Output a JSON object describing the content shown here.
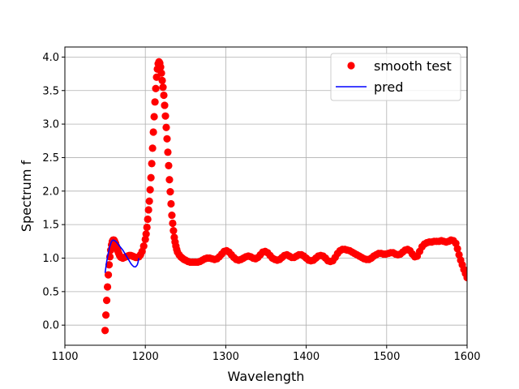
{
  "chart_data": {
    "type": "scatter",
    "title": "",
    "xlabel": "Wavelength",
    "ylabel": "Spectrum f",
    "xlim": [
      1100,
      1600
    ],
    "ylim": [
      -0.3,
      4.15
    ],
    "xticks": [
      1100,
      1200,
      1300,
      1400,
      1500,
      1600
    ],
    "yticks": [
      0.0,
      0.5,
      1.0,
      1.5,
      2.0,
      2.5,
      3.0,
      3.5,
      4.0
    ],
    "xtick_labels": [
      "1100",
      "1200",
      "1300",
      "1400",
      "1500",
      "1600"
    ],
    "ytick_labels": [
      "0.0",
      "0.5",
      "1.0",
      "1.5",
      "2.0",
      "2.5",
      "3.0",
      "3.5",
      "4.0"
    ],
    "grid": true,
    "legend_position": "top-right",
    "series": [
      {
        "name": "smooth test",
        "style": "markers",
        "color": "#ff0000",
        "points": [
          [
            1150,
            -0.08
          ],
          [
            1151,
            0.15
          ],
          [
            1152,
            0.37
          ],
          [
            1153,
            0.57
          ],
          [
            1154,
            0.75
          ],
          [
            1155,
            0.9
          ],
          [
            1156,
            1.02
          ],
          [
            1157,
            1.12
          ],
          [
            1158,
            1.2
          ],
          [
            1159,
            1.25
          ],
          [
            1160,
            1.27
          ],
          [
            1161,
            1.27
          ],
          [
            1162,
            1.25
          ],
          [
            1163,
            1.22
          ],
          [
            1164,
            1.18
          ],
          [
            1165,
            1.14
          ],
          [
            1166,
            1.1
          ],
          [
            1167,
            1.07
          ],
          [
            1168,
            1.04
          ],
          [
            1169,
            1.02
          ],
          [
            1170,
            1.01
          ],
          [
            1172,
            1.0
          ],
          [
            1174,
            1.01
          ],
          [
            1176,
            1.02
          ],
          [
            1178,
            1.03
          ],
          [
            1180,
            1.04
          ],
          [
            1182,
            1.04
          ],
          [
            1184,
            1.03
          ],
          [
            1186,
            1.02
          ],
          [
            1188,
            1.01
          ],
          [
            1190,
            1.01
          ],
          [
            1192,
            1.02
          ],
          [
            1194,
            1.05
          ],
          [
            1196,
            1.1
          ],
          [
            1198,
            1.18
          ],
          [
            1200,
            1.28
          ],
          [
            1201,
            1.36
          ],
          [
            1202,
            1.46
          ],
          [
            1203,
            1.58
          ],
          [
            1204,
            1.72
          ],
          [
            1205,
            1.85
          ],
          [
            1206,
            2.02
          ],
          [
            1207,
            2.2
          ],
          [
            1208,
            2.41
          ],
          [
            1209,
            2.64
          ],
          [
            1210,
            2.88
          ],
          [
            1211,
            3.11
          ],
          [
            1212,
            3.33
          ],
          [
            1213,
            3.53
          ],
          [
            1214,
            3.7
          ],
          [
            1215,
            3.82
          ],
          [
            1216,
            3.9
          ],
          [
            1217,
            3.93
          ],
          [
            1218,
            3.91
          ],
          [
            1219,
            3.85
          ],
          [
            1220,
            3.76
          ],
          [
            1221,
            3.65
          ],
          [
            1222,
            3.55
          ],
          [
            1223,
            3.43
          ],
          [
            1224,
            3.28
          ],
          [
            1225,
            3.12
          ],
          [
            1226,
            2.95
          ],
          [
            1227,
            2.78
          ],
          [
            1228,
            2.58
          ],
          [
            1229,
            2.38
          ],
          [
            1230,
            2.17
          ],
          [
            1231,
            1.99
          ],
          [
            1232,
            1.81
          ],
          [
            1233,
            1.64
          ],
          [
            1234,
            1.52
          ],
          [
            1235,
            1.41
          ],
          [
            1236,
            1.31
          ],
          [
            1237,
            1.24
          ],
          [
            1238,
            1.18
          ],
          [
            1239,
            1.13
          ],
          [
            1240,
            1.09
          ],
          [
            1242,
            1.05
          ],
          [
            1244,
            1.02
          ],
          [
            1246,
            1.0
          ],
          [
            1248,
            0.98
          ],
          [
            1250,
            0.97
          ],
          [
            1253,
            0.95
          ],
          [
            1256,
            0.94
          ],
          [
            1259,
            0.94
          ],
          [
            1262,
            0.94
          ],
          [
            1265,
            0.94
          ],
          [
            1268,
            0.95
          ],
          [
            1271,
            0.97
          ],
          [
            1274,
            0.99
          ],
          [
            1277,
            1.0
          ],
          [
            1280,
            1.0
          ],
          [
            1283,
            0.99
          ],
          [
            1286,
            0.98
          ],
          [
            1289,
            0.99
          ],
          [
            1292,
            1.02
          ],
          [
            1295,
            1.06
          ],
          [
            1298,
            1.1
          ],
          [
            1301,
            1.11
          ],
          [
            1304,
            1.09
          ],
          [
            1307,
            1.05
          ],
          [
            1310,
            1.01
          ],
          [
            1313,
            0.98
          ],
          [
            1316,
            0.97
          ],
          [
            1319,
            0.98
          ],
          [
            1322,
            1.0
          ],
          [
            1325,
            1.02
          ],
          [
            1328,
            1.03
          ],
          [
            1331,
            1.02
          ],
          [
            1334,
            1.0
          ],
          [
            1337,
            0.99
          ],
          [
            1340,
            1.01
          ],
          [
            1343,
            1.05
          ],
          [
            1346,
            1.09
          ],
          [
            1349,
            1.1
          ],
          [
            1352,
            1.08
          ],
          [
            1355,
            1.04
          ],
          [
            1358,
            1.0
          ],
          [
            1361,
            0.98
          ],
          [
            1364,
            0.97
          ],
          [
            1367,
            0.98
          ],
          [
            1370,
            1.01
          ],
          [
            1373,
            1.04
          ],
          [
            1376,
            1.05
          ],
          [
            1379,
            1.03
          ],
          [
            1382,
            1.01
          ],
          [
            1385,
            1.01
          ],
          [
            1388,
            1.03
          ],
          [
            1391,
            1.05
          ],
          [
            1394,
            1.05
          ],
          [
            1397,
            1.03
          ],
          [
            1400,
            1.0
          ],
          [
            1403,
            0.97
          ],
          [
            1406,
            0.96
          ],
          [
            1409,
            0.97
          ],
          [
            1412,
            1.0
          ],
          [
            1415,
            1.03
          ],
          [
            1418,
            1.04
          ],
          [
            1421,
            1.03
          ],
          [
            1424,
            1.0
          ],
          [
            1427,
            0.96
          ],
          [
            1430,
            0.95
          ],
          [
            1433,
            0.96
          ],
          [
            1436,
            1.01
          ],
          [
            1439,
            1.07
          ],
          [
            1442,
            1.11
          ],
          [
            1445,
            1.13
          ],
          [
            1448,
            1.13
          ],
          [
            1451,
            1.12
          ],
          [
            1454,
            1.11
          ],
          [
            1457,
            1.09
          ],
          [
            1460,
            1.07
          ],
          [
            1463,
            1.05
          ],
          [
            1466,
            1.03
          ],
          [
            1469,
            1.01
          ],
          [
            1472,
            0.99
          ],
          [
            1475,
            0.98
          ],
          [
            1478,
            0.98
          ],
          [
            1481,
            1.0
          ],
          [
            1484,
            1.03
          ],
          [
            1487,
            1.05
          ],
          [
            1490,
            1.07
          ],
          [
            1493,
            1.07
          ],
          [
            1496,
            1.06
          ],
          [
            1499,
            1.06
          ],
          [
            1502,
            1.07
          ],
          [
            1505,
            1.08
          ],
          [
            1508,
            1.08
          ],
          [
            1511,
            1.06
          ],
          [
            1514,
            1.05
          ],
          [
            1517,
            1.06
          ],
          [
            1520,
            1.09
          ],
          [
            1523,
            1.12
          ],
          [
            1526,
            1.13
          ],
          [
            1529,
            1.11
          ],
          [
            1532,
            1.06
          ],
          [
            1535,
            1.02
          ],
          [
            1538,
            1.03
          ],
          [
            1541,
            1.1
          ],
          [
            1544,
            1.17
          ],
          [
            1547,
            1.21
          ],
          [
            1550,
            1.23
          ],
          [
            1553,
            1.24
          ],
          [
            1556,
            1.24
          ],
          [
            1559,
            1.25
          ],
          [
            1562,
            1.25
          ],
          [
            1565,
            1.25
          ],
          [
            1568,
            1.26
          ],
          [
            1571,
            1.25
          ],
          [
            1574,
            1.24
          ],
          [
            1577,
            1.25
          ],
          [
            1580,
            1.27
          ],
          [
            1583,
            1.26
          ],
          [
            1586,
            1.22
          ],
          [
            1588,
            1.14
          ],
          [
            1590,
            1.05
          ],
          [
            1592,
            0.97
          ],
          [
            1594,
            0.9
          ],
          [
            1596,
            0.83
          ],
          [
            1598,
            0.77
          ],
          [
            1600,
            0.71
          ]
        ]
      },
      {
        "name": "pred",
        "style": "line",
        "color": "#0000ff",
        "points": [
          [
            1150,
            0.78
          ],
          [
            1152,
            0.95
          ],
          [
            1154,
            1.08
          ],
          [
            1156,
            1.18
          ],
          [
            1158,
            1.25
          ],
          [
            1160,
            1.27
          ],
          [
            1162,
            1.26
          ],
          [
            1164,
            1.24
          ],
          [
            1166,
            1.21
          ],
          [
            1168,
            1.18
          ],
          [
            1170,
            1.15
          ],
          [
            1172,
            1.12
          ],
          [
            1174,
            1.08
          ],
          [
            1176,
            1.04
          ],
          [
            1178,
            1.0
          ],
          [
            1180,
            0.96
          ],
          [
            1182,
            0.92
          ],
          [
            1184,
            0.89
          ],
          [
            1186,
            0.87
          ],
          [
            1188,
            0.87
          ],
          [
            1190,
            0.9
          ],
          [
            1191,
            0.94
          ],
          [
            1192,
            1.0
          ]
        ]
      }
    ]
  }
}
